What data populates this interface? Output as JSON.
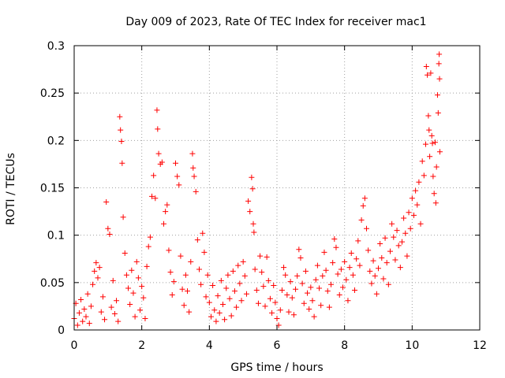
{
  "chart_data": {
    "type": "scatter",
    "title": "Day 009 of 2023, Rate Of TEC Index for receiver mac1",
    "xlabel": "GPS time / hours",
    "ylabel": "ROTI / TECUs",
    "xlim": [
      0,
      12
    ],
    "ylim": [
      0,
      0.3
    ],
    "x_ticks": [
      0,
      2,
      4,
      6,
      8,
      10,
      12
    ],
    "x_tick_labels": [
      "0",
      "2",
      "4",
      "6",
      "8",
      "10",
      "12"
    ],
    "y_ticks": [
      0,
      0.05,
      0.1,
      0.15,
      0.2,
      0.25,
      0.3
    ],
    "y_tick_labels": [
      "0",
      "0.05",
      "0.1",
      "0.15",
      "0.2",
      "0.25",
      "0.3"
    ],
    "grid": true,
    "marker": "+",
    "marker_color": "#ff0000",
    "series": [
      {
        "name": "ROTI",
        "points": [
          [
            0.0,
            0.012
          ],
          [
            0.05,
            0.028
          ],
          [
            0.1,
            0.005
          ],
          [
            0.15,
            0.018
          ],
          [
            0.2,
            0.032
          ],
          [
            0.25,
            0.009
          ],
          [
            0.3,
            0.022
          ],
          [
            0.35,
            0.014
          ],
          [
            0.4,
            0.038
          ],
          [
            0.45,
            0.007
          ],
          [
            0.5,
            0.025
          ],
          [
            0.55,
            0.048
          ],
          [
            0.6,
            0.062
          ],
          [
            0.65,
            0.071
          ],
          [
            0.7,
            0.055
          ],
          [
            0.75,
            0.066
          ],
          [
            0.8,
            0.019
          ],
          [
            0.85,
            0.035
          ],
          [
            0.9,
            0.011
          ],
          [
            0.95,
            0.135
          ],
          [
            1.0,
            0.107
          ],
          [
            1.05,
            0.101
          ],
          [
            1.1,
            0.024
          ],
          [
            1.15,
            0.052
          ],
          [
            1.2,
            0.017
          ],
          [
            1.25,
            0.031
          ],
          [
            1.3,
            0.009
          ],
          [
            1.35,
            0.225
          ],
          [
            1.37,
            0.211
          ],
          [
            1.4,
            0.199
          ],
          [
            1.42,
            0.176
          ],
          [
            1.45,
            0.119
          ],
          [
            1.5,
            0.081
          ],
          [
            1.55,
            0.058
          ],
          [
            1.6,
            0.044
          ],
          [
            1.65,
            0.027
          ],
          [
            1.7,
            0.063
          ],
          [
            1.75,
            0.039
          ],
          [
            1.8,
            0.014
          ],
          [
            1.85,
            0.072
          ],
          [
            1.9,
            0.055
          ],
          [
            1.95,
            0.021
          ],
          [
            2.0,
            0.046
          ],
          [
            2.05,
            0.034
          ],
          [
            2.1,
            0.012
          ],
          [
            2.15,
            0.067
          ],
          [
            2.2,
            0.088
          ],
          [
            2.25,
            0.098
          ],
          [
            2.3,
            0.141
          ],
          [
            2.35,
            0.163
          ],
          [
            2.4,
            0.139
          ],
          [
            2.45,
            0.232
          ],
          [
            2.47,
            0.212
          ],
          [
            2.5,
            0.186
          ],
          [
            2.55,
            0.175
          ],
          [
            2.6,
            0.177
          ],
          [
            2.65,
            0.112
          ],
          [
            2.7,
            0.125
          ],
          [
            2.75,
            0.132
          ],
          [
            2.8,
            0.084
          ],
          [
            2.85,
            0.061
          ],
          [
            2.9,
            0.037
          ],
          [
            2.95,
            0.051
          ],
          [
            3.0,
            0.176
          ],
          [
            3.05,
            0.162
          ],
          [
            3.1,
            0.153
          ],
          [
            3.15,
            0.078
          ],
          [
            3.2,
            0.043
          ],
          [
            3.25,
            0.026
          ],
          [
            3.3,
            0.058
          ],
          [
            3.35,
            0.041
          ],
          [
            3.4,
            0.019
          ],
          [
            3.45,
            0.072
          ],
          [
            3.5,
            0.186
          ],
          [
            3.52,
            0.171
          ],
          [
            3.55,
            0.162
          ],
          [
            3.6,
            0.146
          ],
          [
            3.65,
            0.095
          ],
          [
            3.7,
            0.064
          ],
          [
            3.75,
            0.048
          ],
          [
            3.8,
            0.102
          ],
          [
            3.85,
            0.082
          ],
          [
            3.9,
            0.035
          ],
          [
            3.95,
            0.058
          ],
          [
            4.0,
            0.029
          ],
          [
            4.05,
            0.014
          ],
          [
            4.1,
            0.047
          ],
          [
            4.15,
            0.021
          ],
          [
            4.2,
            0.009
          ],
          [
            4.25,
            0.036
          ],
          [
            4.3,
            0.018
          ],
          [
            4.35,
            0.052
          ],
          [
            4.4,
            0.027
          ],
          [
            4.45,
            0.011
          ],
          [
            4.5,
            0.044
          ],
          [
            4.55,
            0.058
          ],
          [
            4.6,
            0.033
          ],
          [
            4.65,
            0.015
          ],
          [
            4.7,
            0.062
          ],
          [
            4.75,
            0.041
          ],
          [
            4.8,
            0.024
          ],
          [
            4.85,
            0.068
          ],
          [
            4.9,
            0.049
          ],
          [
            4.95,
            0.031
          ],
          [
            5.0,
            0.072
          ],
          [
            5.05,
            0.057
          ],
          [
            5.1,
            0.038
          ],
          [
            5.15,
            0.136
          ],
          [
            5.2,
            0.125
          ],
          [
            5.25,
            0.161
          ],
          [
            5.28,
            0.149
          ],
          [
            5.3,
            0.112
          ],
          [
            5.32,
            0.103
          ],
          [
            5.35,
            0.064
          ],
          [
            5.4,
            0.042
          ],
          [
            5.45,
            0.028
          ],
          [
            5.5,
            0.078
          ],
          [
            5.55,
            0.061
          ],
          [
            5.6,
            0.046
          ],
          [
            5.65,
            0.025
          ],
          [
            5.7,
            0.077
          ],
          [
            5.75,
            0.052
          ],
          [
            5.8,
            0.033
          ],
          [
            5.85,
            0.018
          ],
          [
            5.9,
            0.047
          ],
          [
            5.95,
            0.029
          ],
          [
            6.0,
            0.012
          ],
          [
            6.05,
            0.005
          ],
          [
            6.1,
            0.021
          ],
          [
            6.15,
            0.042
          ],
          [
            6.2,
            0.066
          ],
          [
            6.25,
            0.058
          ],
          [
            6.3,
            0.037
          ],
          [
            6.35,
            0.019
          ],
          [
            6.4,
            0.051
          ],
          [
            6.45,
            0.034
          ],
          [
            6.5,
            0.016
          ],
          [
            6.55,
            0.043
          ],
          [
            6.6,
            0.057
          ],
          [
            6.65,
            0.085
          ],
          [
            6.7,
            0.076
          ],
          [
            6.75,
            0.049
          ],
          [
            6.8,
            0.028
          ],
          [
            6.85,
            0.062
          ],
          [
            6.9,
            0.039
          ],
          [
            6.95,
            0.022
          ],
          [
            7.0,
            0.045
          ],
          [
            7.05,
            0.031
          ],
          [
            7.1,
            0.014
          ],
          [
            7.15,
            0.053
          ],
          [
            7.2,
            0.068
          ],
          [
            7.25,
            0.044
          ],
          [
            7.3,
            0.026
          ],
          [
            7.35,
            0.057
          ],
          [
            7.4,
            0.082
          ],
          [
            7.45,
            0.063
          ],
          [
            7.5,
            0.041
          ],
          [
            7.55,
            0.024
          ],
          [
            7.6,
            0.048
          ],
          [
            7.65,
            0.071
          ],
          [
            7.7,
            0.096
          ],
          [
            7.75,
            0.087
          ],
          [
            7.8,
            0.059
          ],
          [
            7.85,
            0.037
          ],
          [
            7.9,
            0.064
          ],
          [
            7.95,
            0.045
          ],
          [
            8.0,
            0.072
          ],
          [
            8.05,
            0.053
          ],
          [
            8.1,
            0.031
          ],
          [
            8.15,
            0.066
          ],
          [
            8.2,
            0.081
          ],
          [
            8.25,
            0.058
          ],
          [
            8.3,
            0.042
          ],
          [
            8.35,
            0.075
          ],
          [
            8.4,
            0.094
          ],
          [
            8.45,
            0.068
          ],
          [
            8.5,
            0.116
          ],
          [
            8.55,
            0.131
          ],
          [
            8.6,
            0.139
          ],
          [
            8.65,
            0.107
          ],
          [
            8.7,
            0.084
          ],
          [
            8.75,
            0.062
          ],
          [
            8.8,
            0.049
          ],
          [
            8.85,
            0.073
          ],
          [
            8.9,
            0.057
          ],
          [
            8.95,
            0.038
          ],
          [
            9.0,
            0.065
          ],
          [
            9.05,
            0.091
          ],
          [
            9.1,
            0.076
          ],
          [
            9.15,
            0.054
          ],
          [
            9.2,
            0.097
          ],
          [
            9.25,
            0.071
          ],
          [
            9.3,
            0.048
          ],
          [
            9.35,
            0.083
          ],
          [
            9.4,
            0.112
          ],
          [
            9.45,
            0.098
          ],
          [
            9.5,
            0.074
          ],
          [
            9.55,
            0.105
          ],
          [
            9.6,
            0.089
          ],
          [
            9.65,
            0.066
          ],
          [
            9.7,
            0.093
          ],
          [
            9.75,
            0.118
          ],
          [
            9.8,
            0.102
          ],
          [
            9.85,
            0.078
          ],
          [
            9.9,
            0.124
          ],
          [
            9.95,
            0.107
          ],
          [
            10.0,
            0.139
          ],
          [
            10.05,
            0.121
          ],
          [
            10.1,
            0.147
          ],
          [
            10.15,
            0.132
          ],
          [
            10.2,
            0.156
          ],
          [
            10.25,
            0.112
          ],
          [
            10.3,
            0.178
          ],
          [
            10.35,
            0.163
          ],
          [
            10.4,
            0.196
          ],
          [
            10.42,
            0.278
          ],
          [
            10.45,
            0.269
          ],
          [
            10.48,
            0.226
          ],
          [
            10.5,
            0.211
          ],
          [
            10.52,
            0.183
          ],
          [
            10.55,
            0.271
          ],
          [
            10.58,
            0.205
          ],
          [
            10.6,
            0.197
          ],
          [
            10.62,
            0.162
          ],
          [
            10.65,
            0.144
          ],
          [
            10.68,
            0.198
          ],
          [
            10.7,
            0.134
          ],
          [
            10.72,
            0.172
          ],
          [
            10.75,
            0.248
          ],
          [
            10.77,
            0.229
          ],
          [
            10.79,
            0.281
          ],
          [
            10.8,
            0.291
          ],
          [
            10.81,
            0.265
          ],
          [
            10.82,
            0.188
          ]
        ]
      }
    ]
  }
}
